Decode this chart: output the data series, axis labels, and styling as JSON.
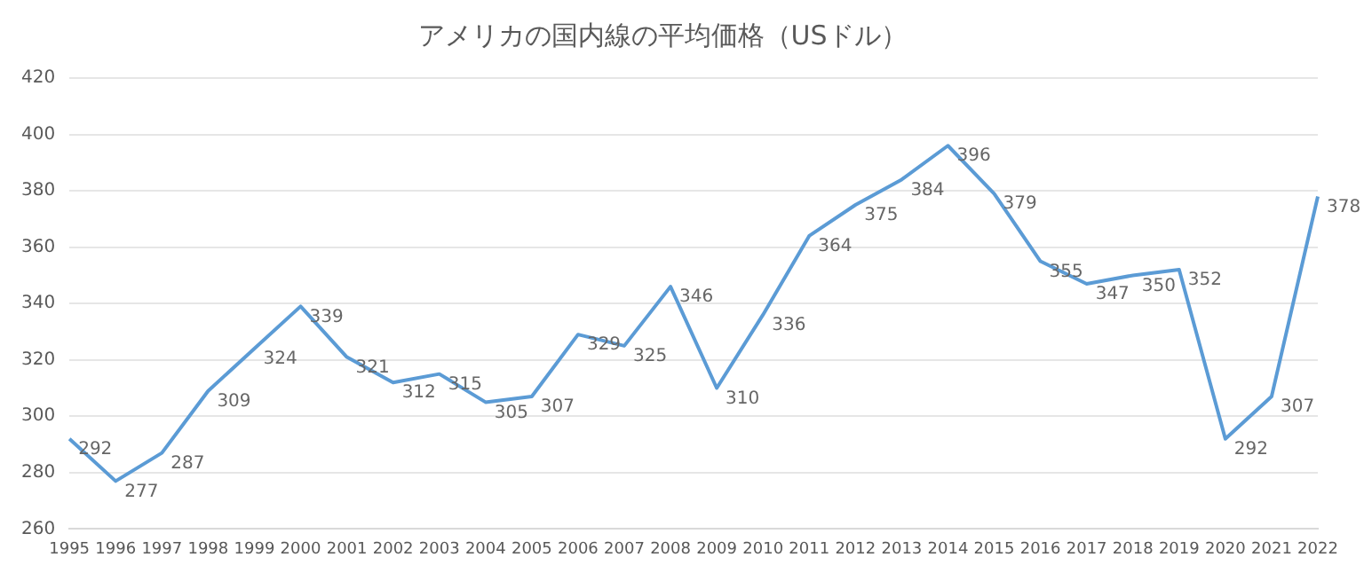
{
  "chart_data": {
    "type": "line",
    "title": "アメリカの国内線の平均価格（USドル）",
    "categories": [
      "1995",
      "1996",
      "1997",
      "1998",
      "1999",
      "2000",
      "2001",
      "2002",
      "2003",
      "2004",
      "2005",
      "2006",
      "2007",
      "2008",
      "2009",
      "2010",
      "2011",
      "2012",
      "2013",
      "2014",
      "2015",
      "2016",
      "2017",
      "2018",
      "2019",
      "2020",
      "2021",
      "2022"
    ],
    "series": [
      {
        "color": "#5b9bd5",
        "values": [
          292,
          277,
          287,
          309,
          324,
          339,
          321,
          312,
          315,
          305,
          307,
          329,
          325,
          346,
          310,
          336,
          364,
          375,
          384,
          396,
          379,
          355,
          347,
          350,
          352,
          292,
          307,
          378
        ]
      }
    ],
    "ylim": [
      260,
      420
    ],
    "yticks": [
      260,
      280,
      300,
      320,
      340,
      360,
      380,
      400,
      420
    ],
    "grid": "y",
    "data_labels": true,
    "marker": "none",
    "line_style": "solid",
    "legend": false
  }
}
